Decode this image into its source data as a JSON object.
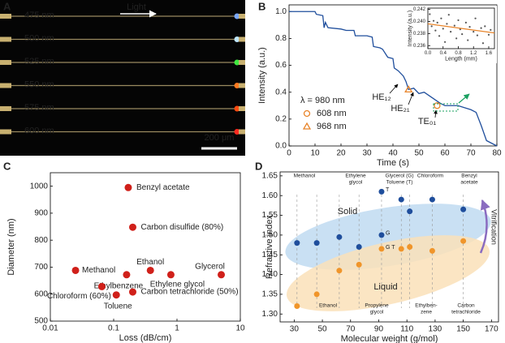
{
  "panel_a": {
    "label": "A",
    "arrow_label": "Light",
    "wavelengths": [
      "475 nm",
      "500 nm",
      "525 nm",
      "550 nm",
      "575 nm",
      "600 nm"
    ],
    "scale_bar": "200 μm"
  },
  "chart_data": [
    {
      "type": "line",
      "label": "B",
      "xlabel": "Time (s)",
      "ylabel": "Intensity (a.u.)",
      "color": "#1f4e9c",
      "xlim": [
        0,
        80
      ],
      "xticks": [
        0,
        10,
        20,
        30,
        40,
        50,
        60,
        70,
        80
      ],
      "ylim": [
        0,
        1.05
      ],
      "yticks": [
        {
          "value": 0,
          "label": "0.0"
        },
        0.2,
        0.4,
        0.6,
        0.8,
        {
          "value": 1,
          "label": "1.0"
        }
      ],
      "x": [
        0,
        10,
        10.5,
        13,
        13.5,
        14,
        15,
        20,
        22,
        25,
        25.5,
        30,
        32,
        32.5,
        35,
        36,
        38,
        40,
        40.5,
        42,
        44,
        45,
        46,
        48,
        50,
        52,
        55,
        58,
        60,
        65,
        70,
        72,
        74,
        76,
        80
      ],
      "values": [
        1.0,
        1.0,
        0.98,
        0.97,
        0.88,
        0.92,
        0.88,
        0.87,
        0.86,
        0.86,
        0.82,
        0.82,
        0.81,
        0.74,
        0.73,
        0.72,
        0.66,
        0.65,
        0.58,
        0.56,
        0.52,
        0.48,
        0.42,
        0.43,
        0.39,
        0.4,
        0.36,
        0.32,
        0.3,
        0.3,
        0.27,
        0.25,
        0.15,
        0.04,
        0.0
      ],
      "legend_title": "λ = 980 nm",
      "markers": [
        {
          "name": "608 nm",
          "shape": "circle",
          "color": "#e8842a",
          "x": 57,
          "y": 0.3
        },
        {
          "name": "968 nm",
          "shape": "triangle",
          "color": "#e8842a",
          "x": 46,
          "y": 0.42
        }
      ],
      "annotations": [
        "HE₁₂",
        "HE₂₁",
        "TE₀₁"
      ],
      "inset": {
        "type": "scatter",
        "xlabel": "Length (mm)",
        "ylabel": "Intensity (a.u.)",
        "color": "#555555",
        "xlim": [
          0,
          1.75
        ],
        "xticks": [
          {
            "value": 0,
            "label": "0.0"
          },
          0.4,
          0.8,
          1.2,
          1.6
        ],
        "ylim": [
          0.2355,
          0.2422
        ],
        "yticks": [
          0.236,
          0.238,
          {
            "value": 0.24,
            "label": "0.240"
          },
          0.242
        ],
        "x": [
          0.05,
          0.1,
          0.15,
          0.2,
          0.25,
          0.3,
          0.35,
          0.4,
          0.45,
          0.5,
          0.55,
          0.6,
          0.7,
          0.75,
          0.8,
          0.85,
          0.9,
          1.0,
          1.05,
          1.1,
          1.2,
          1.25,
          1.3,
          1.4,
          1.45,
          1.5,
          1.6,
          1.65
        ],
        "values": [
          0.2412,
          0.2392,
          0.2401,
          0.2385,
          0.2398,
          0.2376,
          0.2405,
          0.2388,
          0.2366,
          0.2396,
          0.2411,
          0.2383,
          0.2393,
          0.2372,
          0.2402,
          0.2387,
          0.2379,
          0.2398,
          0.2369,
          0.2391,
          0.2383,
          0.2405,
          0.2377,
          0.2389,
          0.2364,
          0.2392,
          0.2378,
          0.2386
        ],
        "fit": {
          "x": [
            0,
            1.75
          ],
          "values": [
            0.2396,
            0.2381
          ],
          "color": "#e8842a"
        }
      }
    },
    {
      "type": "scatter",
      "label": "C",
      "xlabel": "Loss (dB/cm)",
      "ylabel": "Diameter (nm)",
      "color": "#d0201a",
      "log_x": true,
      "xlim": [
        0.01,
        10
      ],
      "xticks": [
        0.01,
        0.1,
        1,
        10
      ],
      "ylim": [
        500,
        1050
      ],
      "yticks": [
        500,
        600,
        700,
        800,
        900,
        1000
      ],
      "x": [
        0.17,
        0.2,
        0.38,
        5,
        0.025,
        0.16,
        0.8,
        0.065,
        0.11,
        0.2
      ],
      "values": [
        995,
        848,
        688,
        672,
        688,
        672,
        672,
        628,
        597,
        608
      ],
      "point_labels": [
        "Benzyl acetate",
        "Carbon disulfide (80%)",
        "Ethanol",
        "Glycerol",
        "Methanol",
        "Ethylbenzene",
        "Ethylene glycol",
        "Chloroform (60%)",
        "Toluene",
        "Carbon tetrachloride (50%)"
      ]
    },
    {
      "type": "scatter",
      "label": "D",
      "xlabel": "Molecular weight (g/mol)",
      "ylabel": "Refractive index",
      "xlim": [
        20,
        175
      ],
      "xticks": [
        30,
        50,
        70,
        90,
        110,
        130,
        150,
        170
      ],
      "ylim": [
        1.28,
        1.66
      ],
      "yticks": [
        {
          "value": 1.3,
          "label": "1.30"
        },
        1.35,
        {
          "value": 1.4,
          "label": "1.40"
        },
        1.45,
        {
          "value": 1.5,
          "label": "1.50"
        },
        1.55,
        {
          "value": 1.6,
          "label": "1.60"
        },
        1.65
      ],
      "series": [
        {
          "name": "Solid",
          "color": "#1f4e9c",
          "x": [
            32,
            46,
            62,
            76,
            92,
            92,
            106,
            112,
            128,
            150
          ],
          "values": [
            1.48,
            1.48,
            1.495,
            1.47,
            1.61,
            1.5,
            1.59,
            1.56,
            1.59,
            1.565
          ],
          "point_labels": [
            null,
            null,
            null,
            null,
            "T",
            "G",
            null,
            null,
            null,
            null
          ]
        },
        {
          "name": "Liquid",
          "color": "#f0952a",
          "x": [
            32,
            46,
            62,
            76,
            92,
            106,
            112,
            128,
            150
          ],
          "values": [
            1.32,
            1.35,
            1.41,
            1.425,
            1.465,
            1.465,
            1.47,
            1.46,
            1.485
          ],
          "point_labels": [
            null,
            null,
            null,
            null,
            "G T",
            null,
            null,
            null,
            null
          ]
        }
      ],
      "top_labels": [
        [
          "Methanol"
        ],
        [
          "Ethylene",
          "glycol"
        ],
        [
          "Glycerol (G)",
          "Toluene (T)"
        ],
        [
          "Chloroform"
        ],
        [
          "Benzyl",
          "acetate"
        ]
      ],
      "bottom_labels": [
        [
          "Ethanol"
        ],
        [
          "Propylene",
          "glycol"
        ],
        [
          "Ethylben-",
          "zene"
        ],
        [
          "Carbon",
          "tetrachloride"
        ]
      ],
      "annotation": "Vitrification"
    }
  ]
}
